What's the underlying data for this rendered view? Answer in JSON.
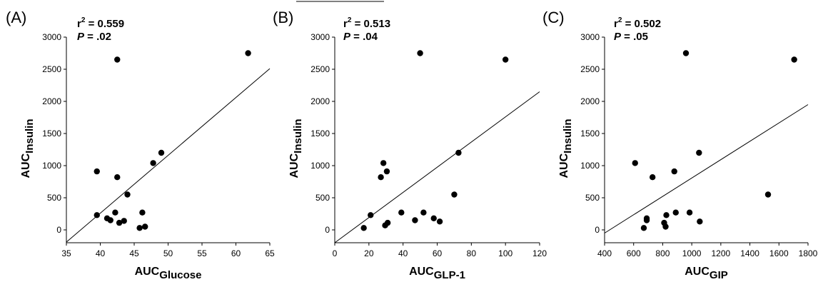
{
  "chart_data": [
    {
      "type": "scatter",
      "panel_label": "(A)",
      "stat_r2": "0.559",
      "stat_p": ".02",
      "xlabel_main": "AUC",
      "xlabel_sub": "Glucose",
      "ylabel_main": "AUC",
      "ylabel_sub": "Insulin",
      "xlim": [
        35,
        65
      ],
      "ylim": [
        -200,
        3000
      ],
      "xticks": [
        35,
        40,
        45,
        50,
        55,
        60,
        65
      ],
      "yticks": [
        0,
        500,
        1000,
        1500,
        2000,
        2500,
        3000
      ],
      "x": [
        39.5,
        39.5,
        41,
        41.5,
        42.2,
        42.5,
        42.5,
        42.8,
        43.5,
        44,
        45.8,
        46.2,
        46.6,
        47.8,
        49,
        61.8
      ],
      "y": [
        910,
        230,
        180,
        150,
        270,
        820,
        2650,
        110,
        140,
        550,
        30,
        270,
        50,
        1040,
        1200,
        2750
      ],
      "fit_line": {
        "x": [
          35,
          65
        ],
        "y": [
          -190,
          2510
        ]
      }
    },
    {
      "type": "scatter",
      "panel_label": "(B)",
      "stat_r2": "0.513",
      "stat_p": ".04",
      "xlabel_main": "AUC",
      "xlabel_sub": "GLP-1",
      "ylabel_main": "AUC",
      "ylabel_sub": "Insulin",
      "xlim": [
        0,
        120
      ],
      "ylim": [
        -200,
        3000
      ],
      "xticks": [
        0,
        20,
        40,
        60,
        80,
        100,
        120
      ],
      "yticks": [
        0,
        500,
        1000,
        1500,
        2000,
        2500,
        3000
      ],
      "x": [
        17,
        21,
        27,
        28.5,
        29.5,
        30.5,
        31,
        39,
        47,
        50,
        52,
        58,
        61.5,
        70,
        72.5,
        100
      ],
      "y": [
        30,
        230,
        820,
        1040,
        70,
        910,
        110,
        270,
        150,
        2750,
        270,
        180,
        130,
        550,
        1200,
        2650
      ],
      "fit_line": {
        "x": [
          0,
          120
        ],
        "y": [
          -200,
          2150
        ]
      }
    },
    {
      "type": "scatter",
      "panel_label": "(C)",
      "stat_r2": "0.502",
      "stat_p": ".05",
      "xlabel_main": "AUC",
      "xlabel_sub": "GIP",
      "ylabel_main": "AUC",
      "ylabel_sub": "Insulin",
      "xlim": [
        400,
        1800
      ],
      "ylim": [
        -200,
        3000
      ],
      "xticks": [
        400,
        600,
        800,
        1000,
        1200,
        1400,
        1600,
        1800
      ],
      "yticks": [
        0,
        500,
        1000,
        1500,
        2000,
        2500,
        3000
      ],
      "x": [
        610,
        670,
        690,
        690,
        730,
        810,
        820,
        825,
        880,
        890,
        960,
        985,
        1050,
        1055,
        1525,
        1705
      ],
      "y": [
        1040,
        30,
        150,
        180,
        820,
        110,
        50,
        230,
        910,
        270,
        2750,
        270,
        1200,
        130,
        550,
        2650
      ],
      "fit_line": {
        "x": [
          400,
          1800
        ],
        "y": [
          -50,
          1950
        ]
      }
    }
  ]
}
